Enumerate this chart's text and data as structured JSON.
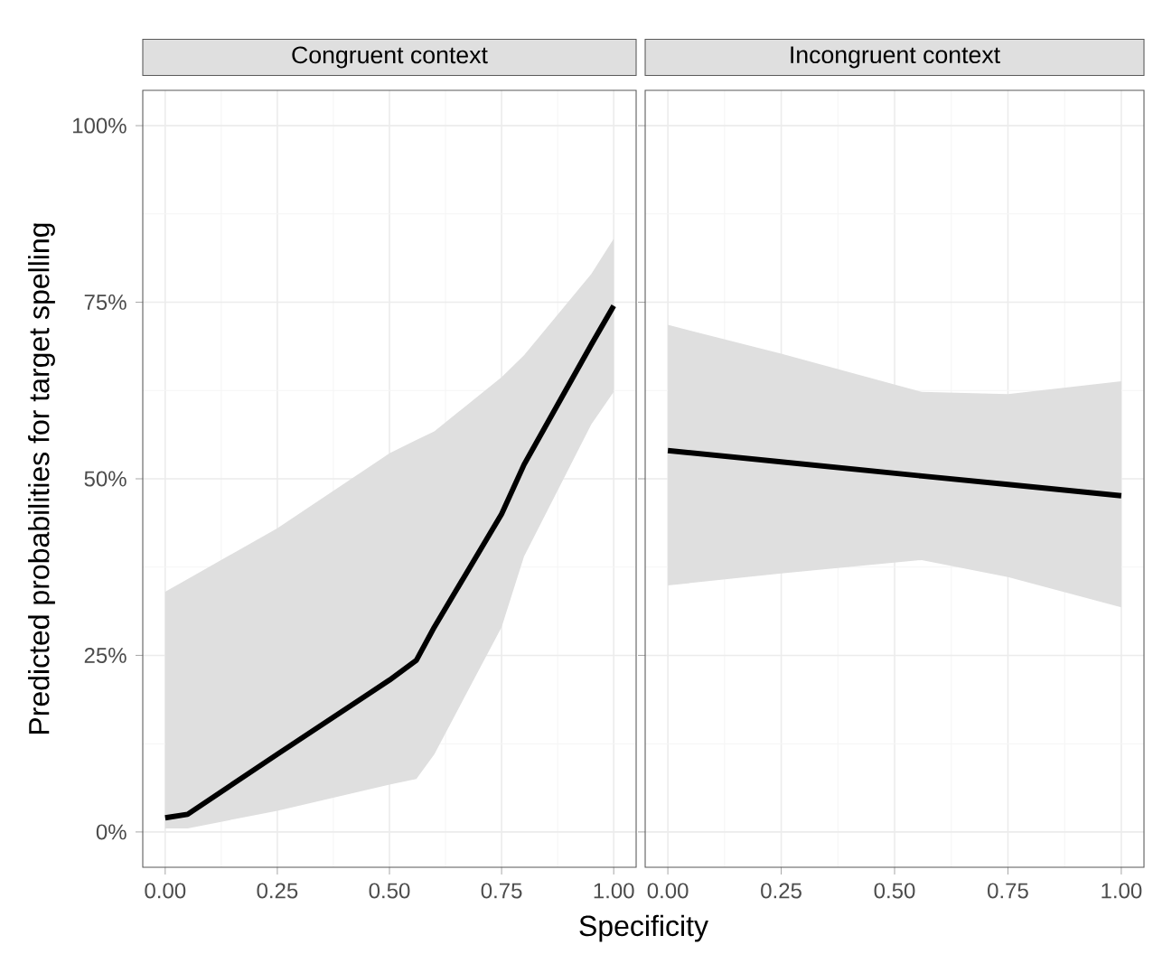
{
  "chart_data": [
    {
      "type": "line",
      "title": "Congruent context",
      "xlabel": "Specificity",
      "ylabel": "Predicted probabilities for target spelling",
      "xlim": [
        -0.05,
        1.05
      ],
      "ylim": [
        -5,
        105
      ],
      "xticks": [
        {
          "value": 0,
          "label": "0.00"
        },
        {
          "value": 0.25,
          "label": "0.25"
        },
        {
          "value": 0.5,
          "label": "0.50"
        },
        {
          "value": 0.75,
          "label": "0.75"
        },
        {
          "value": 1,
          "label": "1.00"
        }
      ],
      "yticks": [
        {
          "value": 0,
          "label": "0%"
        },
        {
          "value": 25,
          "label": "25%"
        },
        {
          "value": 50,
          "label": "50%"
        },
        {
          "value": 75,
          "label": "75%"
        },
        {
          "value": 100,
          "label": "100%"
        }
      ],
      "grid": true,
      "series": [
        {
          "color": "#000000",
          "x": [
            0,
            0.05,
            0.25,
            0.5,
            0.56,
            0.6,
            0.75,
            0.8,
            0.95,
            1
          ],
          "values": [
            2,
            2.5,
            11,
            21.5,
            24.3,
            29,
            45,
            52,
            69,
            74.5
          ],
          "lower": [
            0.5,
            0.5,
            3,
            6.7,
            7.5,
            11,
            29,
            39,
            57.7,
            62.3
          ],
          "upper": [
            34,
            35.8,
            43,
            53.6,
            55.5,
            56.7,
            64.4,
            67.5,
            79,
            84
          ]
        }
      ]
    },
    {
      "type": "line",
      "title": "Incongruent context",
      "xlim": [
        -0.05,
        1.05
      ],
      "ylim": [
        -5,
        105
      ],
      "xticks": [
        {
          "value": 0,
          "label": "0.00"
        },
        {
          "value": 0.25,
          "label": "0.25"
        },
        {
          "value": 0.5,
          "label": "0.50"
        },
        {
          "value": 0.75,
          "label": "0.75"
        },
        {
          "value": 1,
          "label": "1.00"
        }
      ],
      "yticks": [
        {
          "value": 0,
          "label": null
        },
        {
          "value": 25,
          "label": null
        },
        {
          "value": 50,
          "label": null
        },
        {
          "value": 75,
          "label": null
        },
        {
          "value": 100,
          "label": null
        }
      ],
      "grid": true,
      "tick_labels": "x",
      "series": [
        {
          "color": "#000000",
          "x": [
            0,
            0.25,
            0.56,
            0.75,
            1
          ],
          "values": [
            54,
            52.4,
            50.4,
            49.2,
            47.6
          ],
          "lower": [
            34.9,
            36.6,
            38.5,
            36.1,
            31.8
          ],
          "upper": [
            71.8,
            67.7,
            62.3,
            62,
            63.8
          ]
        }
      ]
    }
  ]
}
